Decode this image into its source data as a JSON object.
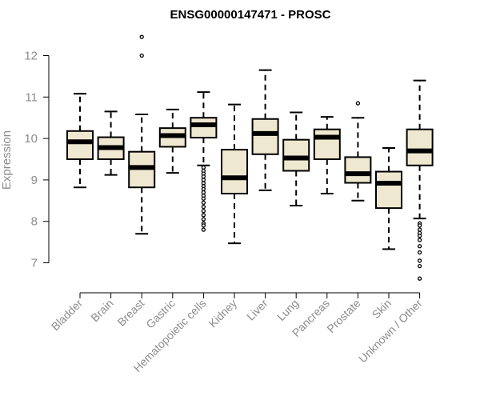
{
  "chart_data": {
    "type": "boxplot",
    "title": "ENSG00000147471 - PROSC",
    "xlabel": "",
    "ylabel": "Expression",
    "ylim": [
      6.45,
      12.55
    ],
    "yticks": [
      7,
      8,
      9,
      10,
      11,
      12
    ],
    "grid": false,
    "legend": "none",
    "colors": {
      "box_fill": "#efe8d0",
      "stroke": "#000000",
      "axis_text": "#8c8c8c"
    },
    "categories": [
      "Bladder",
      "Brain",
      "Breast",
      "Gastric",
      "Hematopoietic cells",
      "Kidney",
      "Liver",
      "Lung",
      "Pancreas",
      "Prostate",
      "Skin",
      "Unknown / Other"
    ],
    "series": [
      {
        "q1": 9.5,
        "median": 9.92,
        "q3": 10.18,
        "whisker_low": 8.82,
        "whisker_high": 11.08,
        "outliers": []
      },
      {
        "q1": 9.5,
        "median": 9.78,
        "q3": 10.03,
        "whisker_low": 9.12,
        "whisker_high": 10.65,
        "outliers": []
      },
      {
        "q1": 8.82,
        "median": 9.3,
        "q3": 9.68,
        "whisker_low": 7.7,
        "whisker_high": 10.58,
        "outliers": [
          12.0,
          12.45
        ]
      },
      {
        "q1": 9.8,
        "median": 10.07,
        "q3": 10.25,
        "whisker_low": 9.17,
        "whisker_high": 10.7,
        "outliers": []
      },
      {
        "q1": 10.02,
        "median": 10.33,
        "q3": 10.5,
        "whisker_low": 9.35,
        "whisker_high": 11.12,
        "outliers": [
          9.3,
          9.22,
          9.15,
          9.08,
          9.0,
          8.92,
          8.85,
          8.78,
          8.7,
          8.62,
          8.55,
          8.45,
          8.35,
          8.25,
          8.15,
          8.05,
          7.95,
          7.9,
          7.8
        ]
      },
      {
        "q1": 8.67,
        "median": 9.05,
        "q3": 9.73,
        "whisker_low": 7.47,
        "whisker_high": 10.82,
        "outliers": []
      },
      {
        "q1": 9.62,
        "median": 10.12,
        "q3": 10.47,
        "whisker_low": 8.75,
        "whisker_high": 11.65,
        "outliers": []
      },
      {
        "q1": 9.22,
        "median": 9.53,
        "q3": 9.97,
        "whisker_low": 8.38,
        "whisker_high": 10.63,
        "outliers": []
      },
      {
        "q1": 9.5,
        "median": 10.03,
        "q3": 10.22,
        "whisker_low": 8.67,
        "whisker_high": 10.52,
        "outliers": []
      },
      {
        "q1": 8.93,
        "median": 9.15,
        "q3": 9.55,
        "whisker_low": 8.5,
        "whisker_high": 10.5,
        "outliers": [
          10.85
        ]
      },
      {
        "q1": 8.32,
        "median": 8.92,
        "q3": 9.2,
        "whisker_low": 7.33,
        "whisker_high": 9.77,
        "outliers": []
      },
      {
        "q1": 9.35,
        "median": 9.7,
        "q3": 10.22,
        "whisker_low": 8.07,
        "whisker_high": 11.4,
        "outliers": [
          7.95,
          7.9,
          7.8,
          7.72,
          7.65,
          7.55,
          7.4,
          7.25,
          7.05,
          6.92,
          6.62
        ]
      }
    ]
  }
}
